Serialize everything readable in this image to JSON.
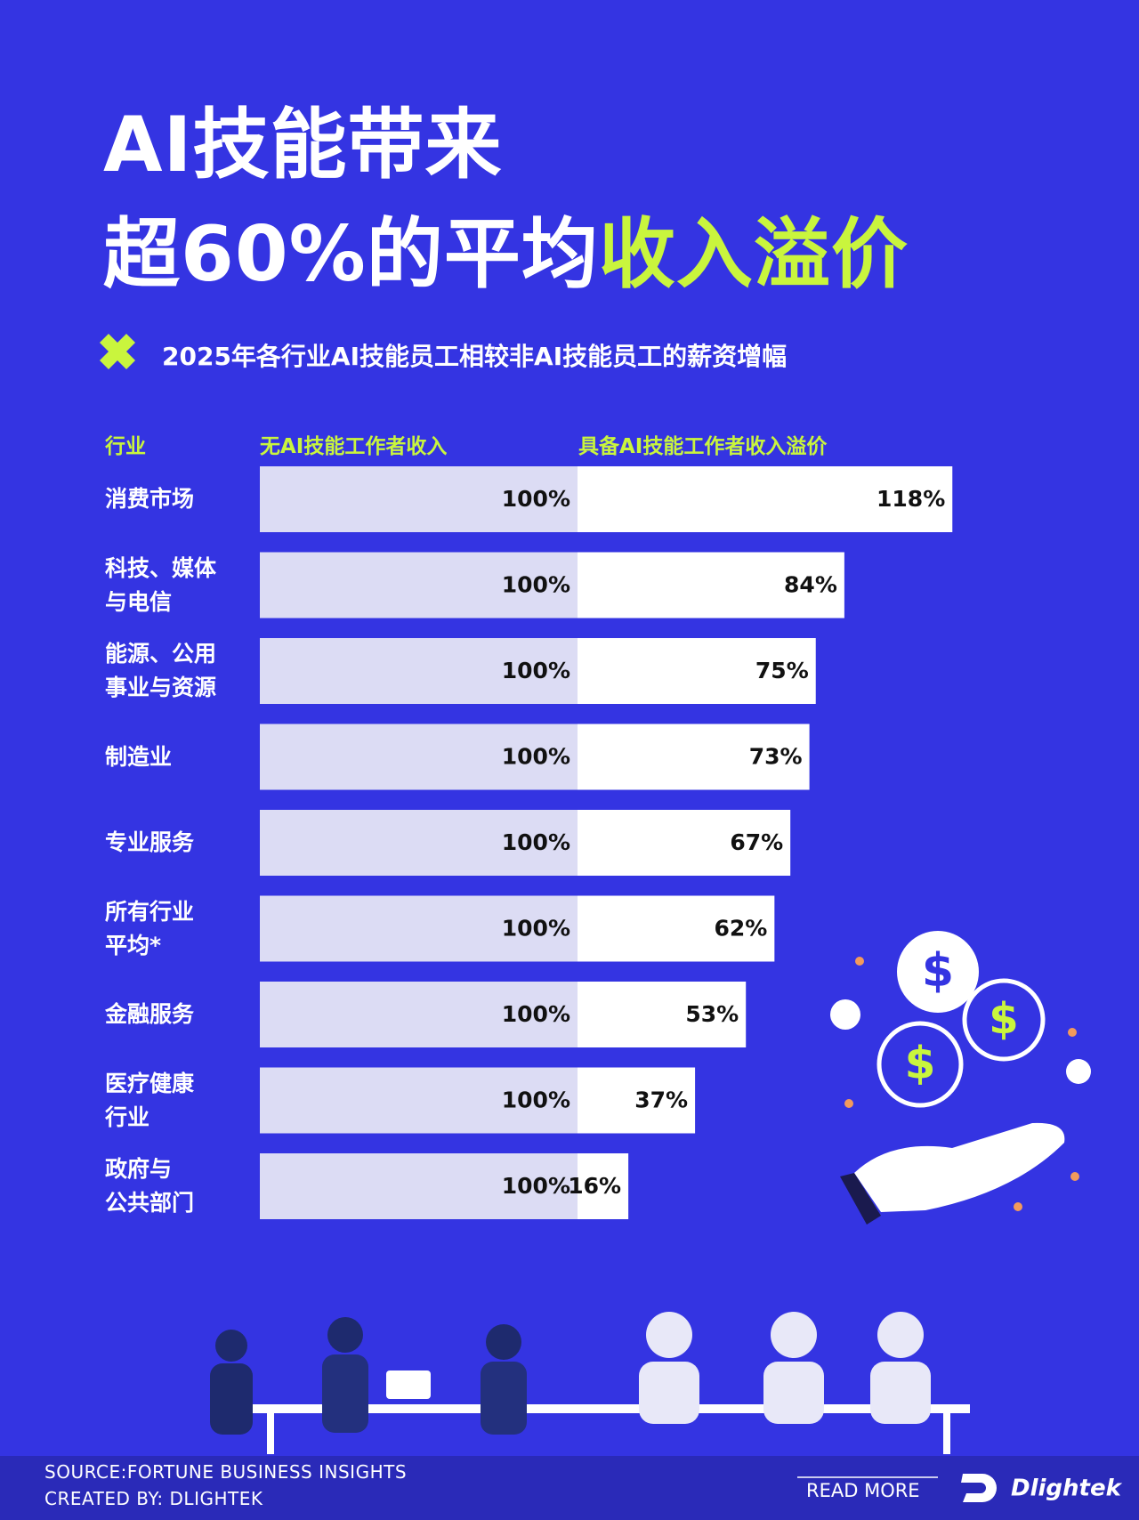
{
  "header": {
    "line1": "AI技能带来",
    "line2": "超60%的平均",
    "highlight": "收入溢价"
  },
  "subtitle": "2025年各行业AI技能员工相较非AI技能员工的薪资增幅",
  "chart_data": {
    "type": "stacked-bar",
    "orientation": "horizontal",
    "category_header": "行业",
    "categories": [
      "消费市场",
      "科技、媒体\n与电信",
      "能源、公用\n事业与资源",
      "制造业",
      "专业服务",
      "所有行业\n平均*",
      "金融服务",
      "医疗健康\n行业",
      "政府与\n公共部门"
    ],
    "series": [
      {
        "name": "无AI技能工作者收入",
        "color": "#dcdcf4",
        "values": [
          100,
          100,
          100,
          100,
          100,
          100,
          100,
          100,
          100
        ],
        "value_labels": [
          "100%",
          "100%",
          "100%",
          "100%",
          "100%",
          "100%",
          "100%",
          "100%",
          "100%"
        ]
      },
      {
        "name": "具备AI技能工作者收入溢价",
        "color": "#ffffff",
        "values": [
          118,
          84,
          75,
          73,
          67,
          62,
          53,
          37,
          16
        ],
        "value_labels": [
          "118%",
          "84%",
          "75%",
          "73%",
          "67%",
          "62%",
          "53%",
          "37%",
          "16%"
        ]
      }
    ]
  },
  "footer": {
    "source": "SOURCE:FORTUNE BUSINESS INSIGHTS",
    "created_by": "CREATED BY: DLIGHTEK",
    "read_more": "READ MORE",
    "brand": "Dlightek"
  }
}
